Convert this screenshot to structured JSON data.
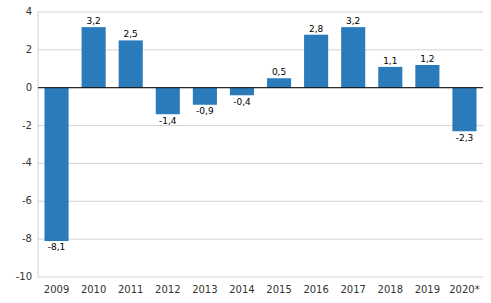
{
  "chart_data": {
    "type": "bar",
    "categories": [
      "2009",
      "2010",
      "2011",
      "2012",
      "2013",
      "2014",
      "2015",
      "2016",
      "2017",
      "2018",
      "2019",
      "2020*"
    ],
    "values": [
      -8.1,
      3.2,
      2.5,
      -1.4,
      -0.9,
      -0.4,
      0.5,
      2.8,
      3.2,
      1.1,
      1.2,
      -2.3
    ],
    "value_labels": [
      "-8,1",
      "3,2",
      "2,5",
      "-1,4",
      "-0,9",
      "-0,4",
      "0,5",
      "2,8",
      "3,2",
      "1,1",
      "1,2",
      "-2,3"
    ],
    "color": "#2b7bba",
    "ylim": [
      -10,
      4
    ],
    "yticks": [
      -10,
      -8,
      -6,
      -4,
      -2,
      0,
      2,
      4
    ],
    "grid": true,
    "data_labels": true
  }
}
